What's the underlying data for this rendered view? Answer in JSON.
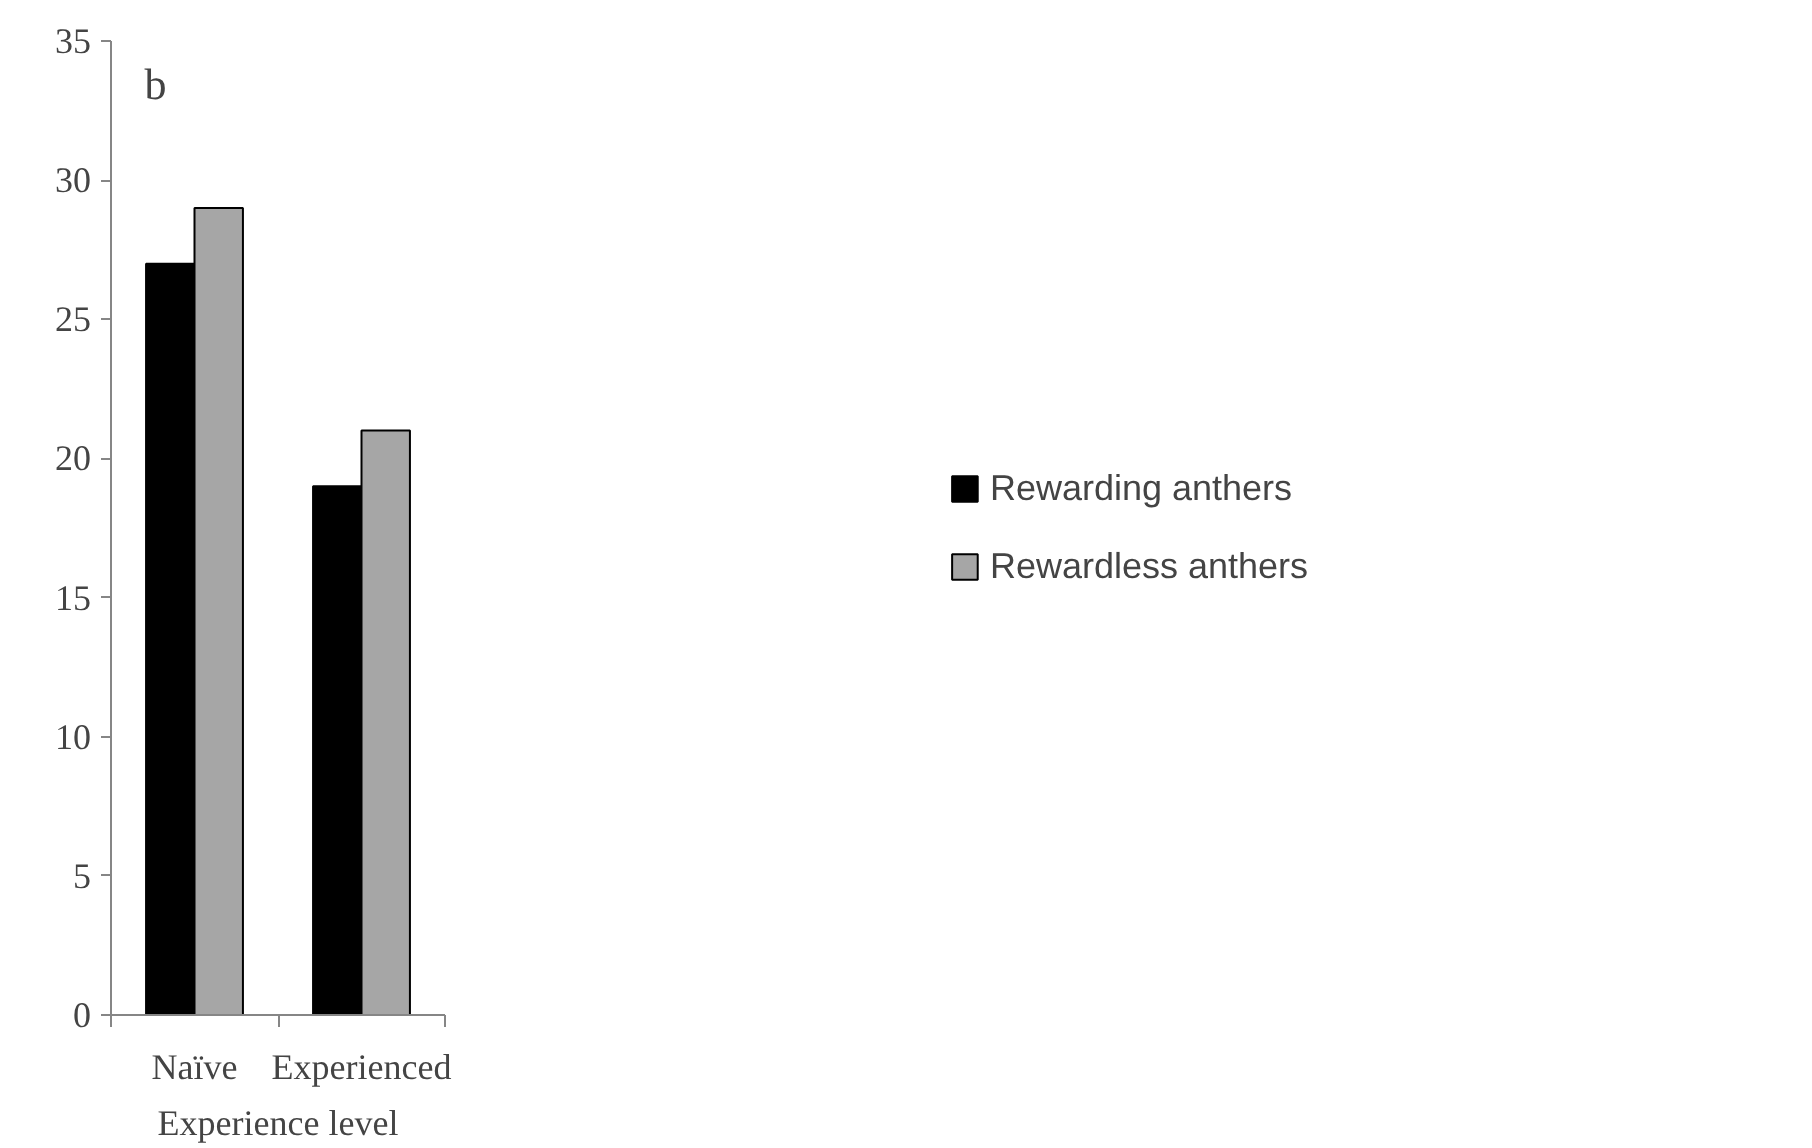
{
  "chart_data": {
    "type": "bar",
    "xlabel": "Experience level",
    "categories": [
      "Naïve",
      "Experienced"
    ],
    "series": [
      {
        "name": "Rewarding anthers",
        "color": "#000000",
        "values": [
          27,
          19
        ]
      },
      {
        "name": "Rewardless anthers",
        "color": "#a6a6a6",
        "values": [
          29,
          21
        ]
      }
    ],
    "ylim": [
      0,
      35
    ],
    "yticks": [
      0,
      5,
      10,
      15,
      20,
      25,
      30,
      35
    ],
    "legend": "right",
    "annotations": [
      "b"
    ]
  }
}
